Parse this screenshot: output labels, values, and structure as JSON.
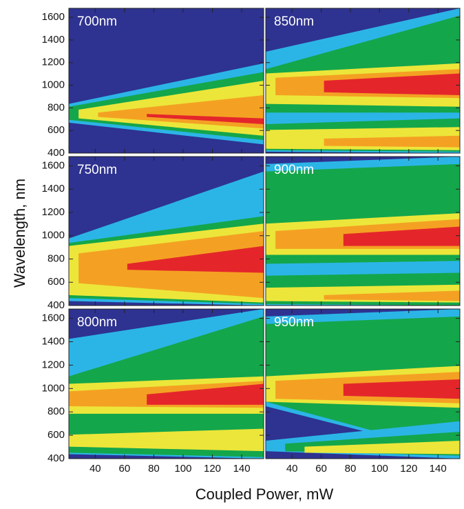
{
  "chart_data": [
    {
      "type": "contour",
      "title": "700nm",
      "xlim": [
        22,
        155
      ],
      "ylim": [
        400,
        1680
      ],
      "xticks": [
        40,
        60,
        80,
        100,
        120,
        140
      ],
      "yticks": [
        400,
        600,
        800,
        1000,
        1200,
        1400,
        1600
      ]
    },
    {
      "type": "contour",
      "title": "850nm",
      "xlim": [
        22,
        155
      ],
      "ylim": [
        400,
        1680
      ],
      "xticks": [
        40,
        60,
        80,
        100,
        120,
        140
      ],
      "yticks": [
        400,
        600,
        800,
        1000,
        1200,
        1400,
        1600
      ]
    },
    {
      "type": "contour",
      "title": "750nm",
      "xlim": [
        22,
        155
      ],
      "ylim": [
        400,
        1680
      ],
      "xticks": [
        40,
        60,
        80,
        100,
        120,
        140
      ],
      "yticks": [
        400,
        600,
        800,
        1000,
        1200,
        1400,
        1600
      ]
    },
    {
      "type": "contour",
      "title": "900nm",
      "xlim": [
        22,
        155
      ],
      "ylim": [
        400,
        1680
      ],
      "xticks": [
        40,
        60,
        80,
        100,
        120,
        140
      ],
      "yticks": [
        400,
        600,
        800,
        1000,
        1200,
        1400,
        1600
      ]
    },
    {
      "type": "contour",
      "title": "800nm",
      "xlim": [
        22,
        155
      ],
      "ylim": [
        400,
        1680
      ],
      "xticks": [
        40,
        60,
        80,
        100,
        120,
        140
      ],
      "yticks": [
        400,
        600,
        800,
        1000,
        1200,
        1400,
        1600
      ]
    },
    {
      "type": "contour",
      "title": "950nm",
      "xlim": [
        22,
        155
      ],
      "ylim": [
        400,
        1680
      ],
      "xticks": [
        40,
        60,
        80,
        100,
        120,
        140
      ],
      "yticks": [
        400,
        600,
        800,
        1000,
        1200,
        1400,
        1600
      ]
    }
  ],
  "xlabel": "Coupled Power, mW",
  "ylabel": "Wavelength, nm"
}
